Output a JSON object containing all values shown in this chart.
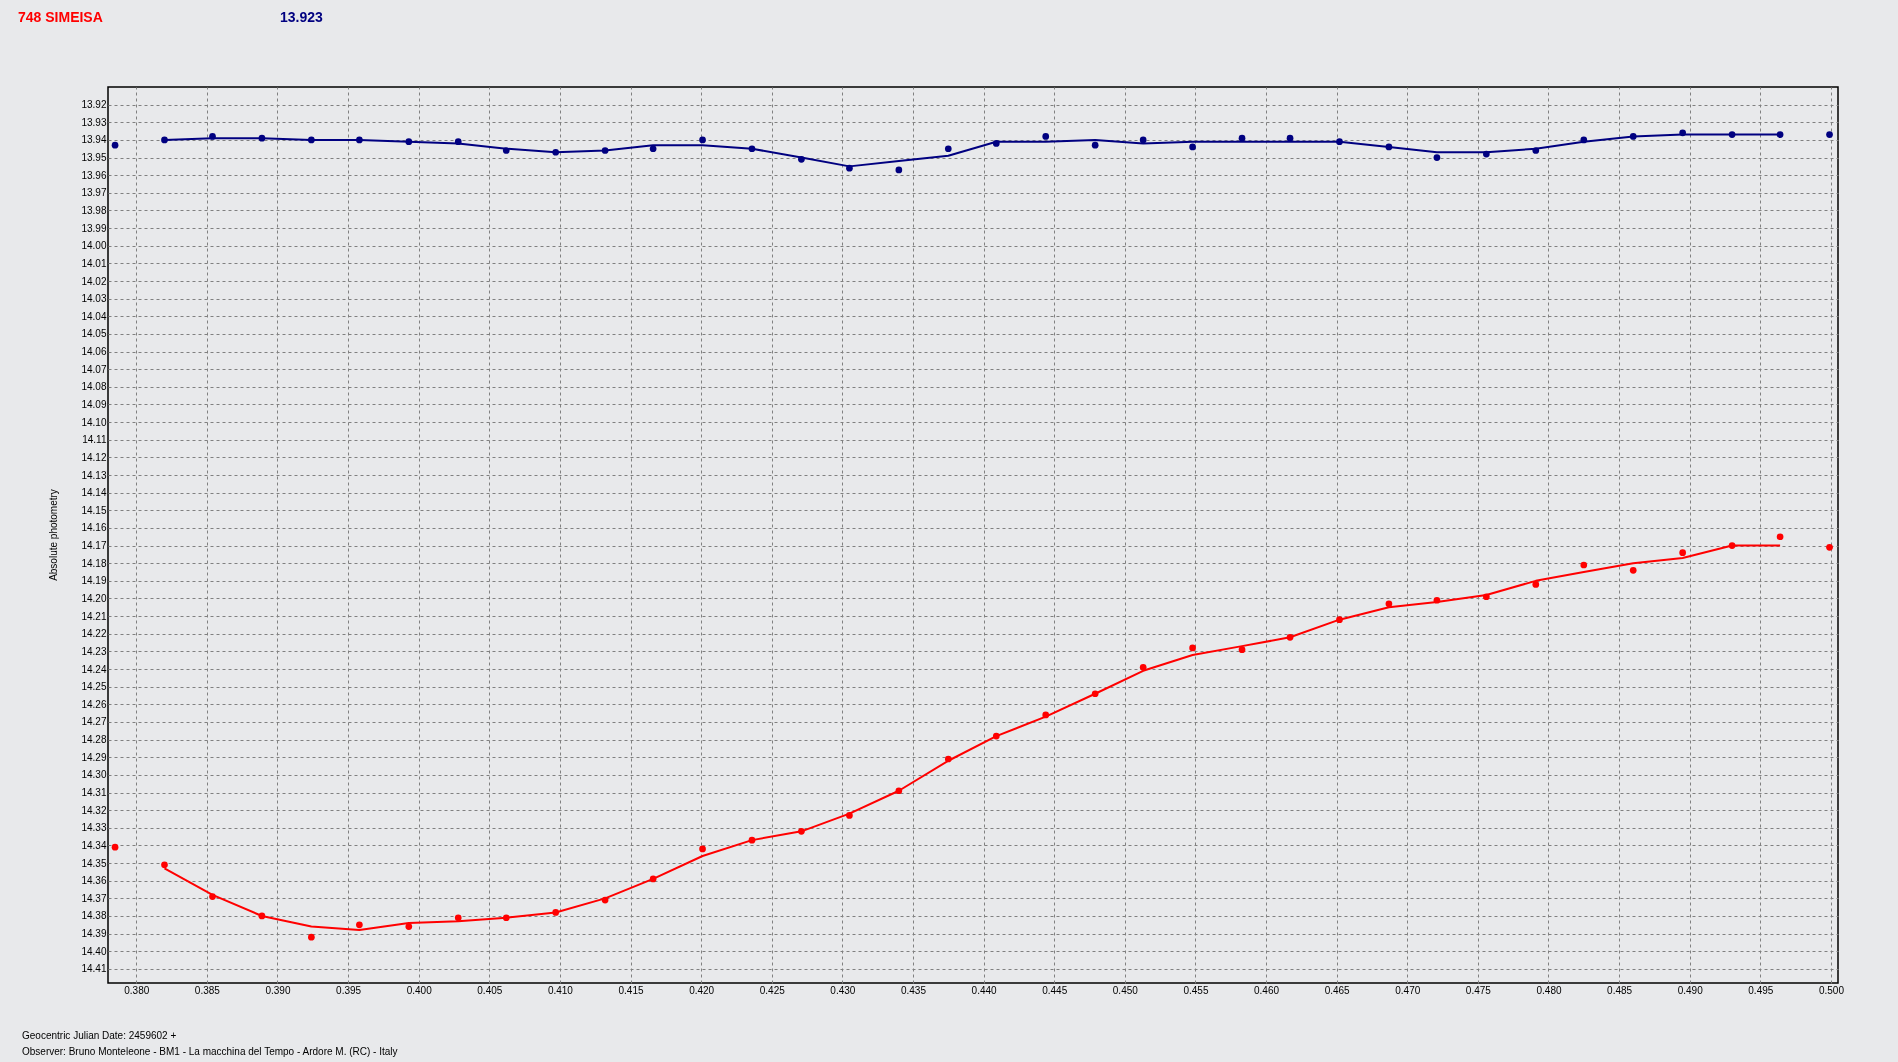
{
  "chart_data": {
    "type": "scatter",
    "title": "748 SIMEISA",
    "subtitle": "13.923",
    "xlabel": "Geocentric Julian Date: 2459602 +",
    "ylabel": "Absolute photometry",
    "annotations": [
      "Observer: Bruno Monteleone - BM1 - La macchina del Tempo - Ardore M. (RC) - Italy"
    ],
    "xlim": [
      0.378,
      0.5005
    ],
    "ylim": [
      14.418,
      13.91
    ],
    "xticks": [
      {
        "value": 0.38,
        "label": "0.380"
      },
      0.385,
      {
        "value": 0.39,
        "label": "0.390"
      },
      0.395,
      {
        "value": 0.4,
        "label": "0.400"
      },
      0.405,
      {
        "value": 0.41,
        "label": "0.410"
      },
      0.415,
      {
        "value": 0.42,
        "label": "0.420"
      },
      0.425,
      {
        "value": 0.43,
        "label": "0.430"
      },
      0.435,
      {
        "value": 0.44,
        "label": "0.440"
      },
      0.445,
      {
        "value": 0.45,
        "label": "0.450"
      },
      0.455,
      {
        "value": 0.46,
        "label": "0.460"
      },
      0.465,
      {
        "value": 0.47,
        "label": "0.470"
      },
      0.475,
      {
        "value": 0.48,
        "label": "0.480"
      },
      0.485,
      {
        "value": 0.49,
        "label": "0.490"
      },
      0.495,
      {
        "value": 0.5,
        "label": "0.500"
      }
    ],
    "yticks": [
      13.92,
      13.93,
      13.94,
      13.95,
      13.96,
      13.97,
      13.98,
      13.99,
      {
        "value": 14.0,
        "label": "14.00"
      },
      14.01,
      14.02,
      14.03,
      14.04,
      14.05,
      14.06,
      14.07,
      14.08,
      14.09,
      {
        "value": 14.1,
        "label": "14.10"
      },
      14.11,
      14.12,
      14.13,
      14.14,
      14.15,
      14.16,
      14.17,
      14.18,
      14.19,
      {
        "value": 14.2,
        "label": "14.20"
      },
      14.21,
      14.22,
      14.23,
      14.24,
      14.25,
      14.26,
      14.27,
      14.28,
      14.29,
      {
        "value": 14.3,
        "label": "14.30"
      },
      14.31,
      14.32,
      14.33,
      14.34,
      14.35,
      14.36,
      14.37,
      14.38,
      14.39,
      {
        "value": 14.4,
        "label": "14.40"
      },
      14.41
    ],
    "grid": true,
    "marker": "circle",
    "series": [
      {
        "color": "#000080",
        "x": [
          0.3785,
          0.382,
          0.3854,
          0.3889,
          0.3924,
          0.3958,
          0.3993,
          0.4028,
          0.4062,
          0.4097,
          0.4132,
          0.4166,
          0.4201,
          0.4236,
          0.4271,
          0.4305,
          0.434,
          0.4375,
          0.4409,
          0.4444,
          0.4479,
          0.4513,
          0.4548,
          0.4583,
          0.4617,
          0.4652,
          0.4687,
          0.4721,
          0.4756,
          0.4791,
          0.4825,
          0.486,
          0.4895,
          0.493,
          0.4964,
          0.4999
        ],
        "values": [
          13.943,
          13.94,
          13.938,
          13.939,
          13.94,
          13.94,
          13.941,
          13.941,
          13.946,
          13.947,
          13.946,
          13.945,
          13.94,
          13.945,
          13.951,
          13.956,
          13.957,
          13.945,
          13.942,
          13.938,
          13.943,
          13.94,
          13.944,
          13.939,
          13.939,
          13.941,
          13.944,
          13.95,
          13.948,
          13.946,
          13.94,
          13.938,
          13.936,
          13.937,
          13.937,
          13.937
        ]
      },
      {
        "type": "line",
        "marker": "none",
        "line_style": "solid",
        "color": "#000080",
        "x": [
          0.382,
          0.3854,
          0.3889,
          0.3924,
          0.3958,
          0.3993,
          0.4028,
          0.4062,
          0.4097,
          0.4132,
          0.4166,
          0.4201,
          0.4236,
          0.4271,
          0.4305,
          0.434,
          0.4375,
          0.4409,
          0.4444,
          0.4479,
          0.4513,
          0.4548,
          0.4583,
          0.4617,
          0.4652,
          0.4687,
          0.4721,
          0.4756,
          0.4791,
          0.4825,
          0.486,
          0.4895,
          0.493,
          0.4964
        ],
        "values": [
          13.94,
          13.939,
          13.939,
          13.94,
          13.94,
          13.941,
          13.942,
          13.945,
          13.947,
          13.946,
          13.943,
          13.943,
          13.945,
          13.95,
          13.955,
          13.952,
          13.949,
          13.941,
          13.941,
          13.94,
          13.942,
          13.941,
          13.941,
          13.941,
          13.941,
          13.944,
          13.947,
          13.947,
          13.945,
          13.941,
          13.938,
          13.937,
          13.937,
          13.937
        ]
      },
      {
        "color": "#ff0000",
        "x": [
          0.3785,
          0.382,
          0.3854,
          0.3889,
          0.3924,
          0.3958,
          0.3993,
          0.4028,
          0.4062,
          0.4097,
          0.4132,
          0.4166,
          0.4201,
          0.4236,
          0.4271,
          0.4305,
          0.434,
          0.4375,
          0.4409,
          0.4444,
          0.4479,
          0.4513,
          0.4548,
          0.4583,
          0.4617,
          0.4652,
          0.4687,
          0.4721,
          0.4756,
          0.4791,
          0.4825,
          0.486,
          0.4895,
          0.493,
          0.4964,
          0.4999
        ],
        "values": [
          14.341,
          14.351,
          14.369,
          14.38,
          14.392,
          14.385,
          14.386,
          14.381,
          14.381,
          14.378,
          14.371,
          14.359,
          14.342,
          14.337,
          14.332,
          14.323,
          14.309,
          14.291,
          14.278,
          14.266,
          14.254,
          14.239,
          14.228,
          14.229,
          14.222,
          14.212,
          14.203,
          14.201,
          14.199,
          14.192,
          14.181,
          14.184,
          14.174,
          14.17,
          14.165,
          14.171
        ]
      },
      {
        "type": "line",
        "marker": "none",
        "line_style": "solid",
        "color": "#ff0000",
        "x": [
          0.382,
          0.3854,
          0.3889,
          0.3924,
          0.3958,
          0.3993,
          0.4028,
          0.4062,
          0.4097,
          0.4132,
          0.4166,
          0.4201,
          0.4236,
          0.4271,
          0.4305,
          0.434,
          0.4375,
          0.4409,
          0.4444,
          0.4479,
          0.4513,
          0.4548,
          0.4583,
          0.4617,
          0.4652,
          0.4687,
          0.4721,
          0.4756,
          0.4791,
          0.4825,
          0.486,
          0.4895,
          0.493,
          0.4964
        ],
        "values": [
          14.353,
          14.368,
          14.38,
          14.386,
          14.388,
          14.384,
          14.383,
          14.381,
          14.378,
          14.37,
          14.359,
          14.346,
          14.337,
          14.332,
          14.322,
          14.309,
          14.292,
          14.278,
          14.267,
          14.254,
          14.241,
          14.232,
          14.227,
          14.222,
          14.212,
          14.205,
          14.202,
          14.198,
          14.19,
          14.185,
          14.18,
          14.177,
          14.17,
          14.17
        ]
      }
    ]
  }
}
